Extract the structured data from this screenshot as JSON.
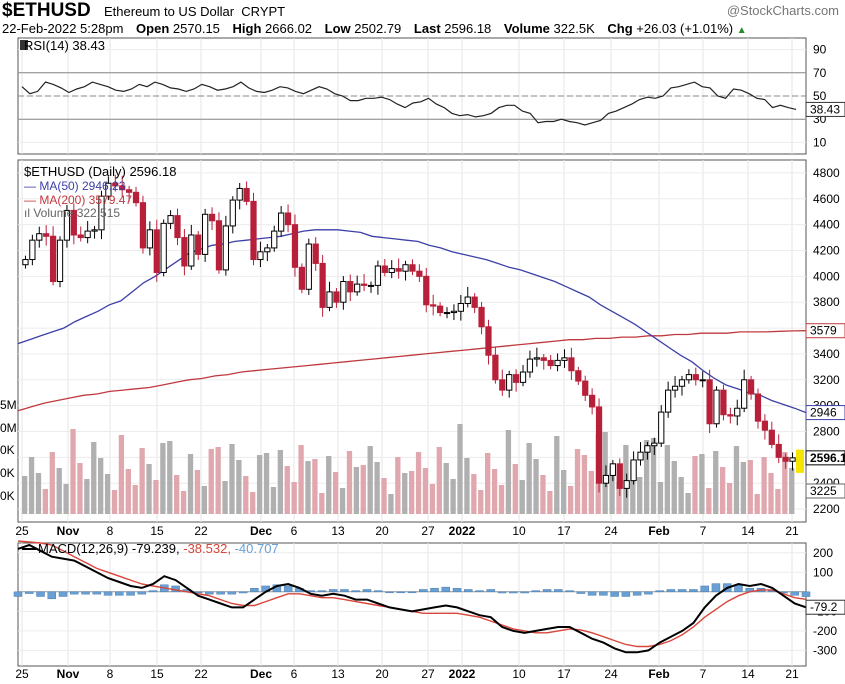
{
  "header": {
    "symbol": "$ETHUSD",
    "name": "Ethereum to US Dollar",
    "exchange": "CRYPT",
    "brand": "@StockCharts.com",
    "date": "22-Feb-2022 5:28pm",
    "open_label": "Open",
    "open": "2570.15",
    "high_label": "High",
    "high": "2666.02",
    "low_label": "Low",
    "low": "2502.79",
    "last_label": "Last",
    "last": "2596.18",
    "volume_label": "Volume",
    "volume": "322.5K",
    "chg_label": "Chg",
    "chg": "+26.03 (+1.01%)",
    "up_arrow": "▲"
  },
  "colors": {
    "up": "#000000",
    "down": "#b8203a",
    "ma50": "#3d3fa8",
    "ma200": "#c0393f",
    "vol_up": "#b0b0b0",
    "vol_down": "#e0a8ae",
    "macd_line": "#000000",
    "signal_line": "#d9453b",
    "histogram": "#6a9fd4",
    "price_tag": "#f5e400"
  },
  "chart_data": [
    {
      "type": "line",
      "panel": "rsi",
      "label": "RSI(14) 38.43",
      "yticks": [
        90,
        70,
        50,
        30,
        10
      ],
      "ylim": [
        0,
        100
      ],
      "levels": [
        70,
        50,
        30
      ],
      "last_label": "38.43",
      "values": [
        58,
        52,
        54,
        62,
        60,
        57,
        53,
        56,
        58,
        62,
        60,
        58,
        55,
        54,
        56,
        60,
        58,
        62,
        60,
        57,
        56,
        54,
        56,
        60,
        58,
        55,
        56,
        58,
        62,
        57,
        54,
        53,
        55,
        58,
        57,
        54,
        52,
        55,
        58,
        56,
        52,
        50,
        46,
        46,
        48,
        48,
        49,
        47,
        43,
        40,
        44,
        45,
        48,
        43,
        40,
        35,
        33,
        34,
        32,
        33,
        35,
        40,
        42,
        42,
        37,
        35,
        27,
        28,
        28,
        30,
        28,
        27,
        25,
        27,
        29,
        35,
        37,
        40,
        43,
        47,
        49,
        48,
        50,
        57,
        58,
        60,
        62,
        58,
        57,
        50,
        48,
        56,
        55,
        52,
        48,
        47,
        40,
        42,
        40,
        38.43
      ]
    },
    {
      "type": "candlestick",
      "panel": "price",
      "title": "$ETHUSD (Daily) 2596.18",
      "legend": [
        {
          "name": "MA(50) 2946.23",
          "color": "#3d3fa8"
        },
        {
          "name": "MA(200) 3579.47",
          "color": "#c0393f"
        },
        {
          "name": "Volume 322,515",
          "color": "#888888"
        }
      ],
      "yticks": [
        2200,
        2400,
        2600,
        2800,
        3000,
        3200,
        3400,
        3600,
        3800,
        4000,
        4200,
        4400,
        4600,
        4800
      ],
      "ylim": [
        2100,
        4900
      ],
      "x_tick_labels": [
        "25",
        "Nov",
        "8",
        "15",
        "22",
        "Dec",
        "6",
        "13",
        "20",
        "27",
        "2022",
        "10",
        "17",
        "24",
        "Feb",
        "7",
        "14",
        "21"
      ],
      "closes": [
        4130,
        4280,
        4330,
        4310,
        3960,
        4280,
        4510,
        4320,
        4300,
        4350,
        4360,
        4620,
        4720,
        4700,
        4670,
        4650,
        4570,
        4220,
        4360,
        4030,
        4410,
        4470,
        4300,
        4080,
        4320,
        4170,
        4480,
        4430,
        4050,
        4390,
        4590,
        4680,
        4580,
        4130,
        4190,
        4220,
        4350,
        4490,
        4400,
        4070,
        3900,
        4250,
        4100,
        3760,
        3880,
        3800,
        3960,
        3880,
        3940,
        3930,
        3930,
        4080,
        4030,
        4060,
        4040,
        4090,
        4040,
        4000,
        3780,
        3770,
        3720,
        3720,
        3730,
        3790,
        3840,
        3760,
        3610,
        3390,
        3200,
        3120,
        3240,
        3180,
        3260,
        3360,
        3370,
        3350,
        3310,
        3350,
        3370,
        3270,
        3190,
        3080,
        2990,
        2400,
        2460,
        2550,
        2360,
        2420,
        2580,
        2640,
        2690,
        2710,
        2950,
        3120,
        3150,
        3200,
        3240,
        3200,
        3200,
        2860,
        3120,
        2930,
        2920,
        2980,
        3200,
        3090,
        2880,
        2810,
        2700,
        2600,
        2570,
        2596.18
      ],
      "ma50": [
        3480,
        3510,
        3540,
        3570,
        3600,
        3650,
        3690,
        3730,
        3780,
        3810,
        3880,
        3950,
        4000,
        4060,
        4120,
        4180,
        4210,
        4240,
        4250,
        4270,
        4280,
        4290,
        4300,
        4310,
        4330,
        4350,
        4360,
        4360,
        4360,
        4350,
        4340,
        4310,
        4300,
        4290,
        4280,
        4270,
        4240,
        4220,
        4190,
        4170,
        4150,
        4130,
        4100,
        4070,
        4050,
        4020,
        3990,
        3960,
        3920,
        3880,
        3840,
        3780,
        3730,
        3680,
        3630,
        3570,
        3510,
        3450,
        3390,
        3340,
        3270,
        3210,
        3160,
        3130,
        3100,
        3080,
        3040,
        3010,
        2980,
        2946.23
      ],
      "ma200": [
        2960,
        2990,
        3020,
        3040,
        3060,
        3080,
        3090,
        3110,
        3120,
        3130,
        3140,
        3160,
        3180,
        3200,
        3210,
        3230,
        3240,
        3260,
        3270,
        3280,
        3290,
        3300,
        3310,
        3320,
        3330,
        3340,
        3350,
        3360,
        3370,
        3380,
        3390,
        3400,
        3410,
        3420,
        3430,
        3440,
        3450,
        3460,
        3470,
        3480,
        3490,
        3500,
        3510,
        3510,
        3520,
        3520,
        3530,
        3530,
        3540,
        3540,
        3550,
        3550,
        3560,
        3560,
        3560,
        3570,
        3570,
        3570,
        3575,
        3578,
        3579.47
      ],
      "last_price": "2596.18",
      "ma50_label": "2946",
      "ma200_label": "3579",
      "volume_label": "3225",
      "volume_axis_labels": [
        "5M",
        "0M",
        "0K",
        "0K",
        "0K"
      ]
    },
    {
      "type": "line",
      "panel": "macd",
      "label_prefix": "MACD(12,26,9)",
      "macd_value": "-79.239",
      "signal_value": "-38.532",
      "hist_value": "-40.707",
      "yticks": [
        200,
        100,
        -100,
        -200,
        -300
      ],
      "ylim": [
        -380,
        250
      ],
      "last_label": "-79.2",
      "macd": [
        220,
        240,
        210,
        180,
        170,
        160,
        130,
        100,
        70,
        50,
        30,
        20,
        40,
        80,
        60,
        20,
        -20,
        -40,
        -60,
        -80,
        -80,
        -40,
        0,
        30,
        40,
        20,
        -10,
        -20,
        -10,
        -20,
        -40,
        -40,
        -60,
        -80,
        -90,
        -100,
        -90,
        -80,
        -70,
        -80,
        -100,
        -120,
        -130,
        -180,
        -200,
        -210,
        -200,
        -190,
        -180,
        -180,
        -210,
        -240,
        -260,
        -290,
        -310,
        -310,
        -300,
        -260,
        -230,
        -200,
        -160,
        -80,
        -20,
        20,
        40,
        30,
        40,
        20,
        -20,
        -60,
        -79.239
      ],
      "signal": [
        260,
        255,
        250,
        240,
        210,
        180,
        150,
        120,
        100,
        80,
        60,
        40,
        30,
        20,
        10,
        0,
        -10,
        -20,
        -40,
        -60,
        -70,
        -70,
        -50,
        -30,
        -10,
        -10,
        -20,
        -30,
        -30,
        -40,
        -50,
        -60,
        -70,
        -80,
        -90,
        -100,
        -110,
        -110,
        -110,
        -110,
        -120,
        -130,
        -150,
        -170,
        -190,
        -200,
        -210,
        -210,
        -200,
        -190,
        -195,
        -210,
        -230,
        -250,
        -270,
        -280,
        -280,
        -270,
        -250,
        -220,
        -180,
        -130,
        -90,
        -50,
        -20,
        0,
        10,
        10,
        -10,
        -30,
        -38.532
      ]
    }
  ]
}
